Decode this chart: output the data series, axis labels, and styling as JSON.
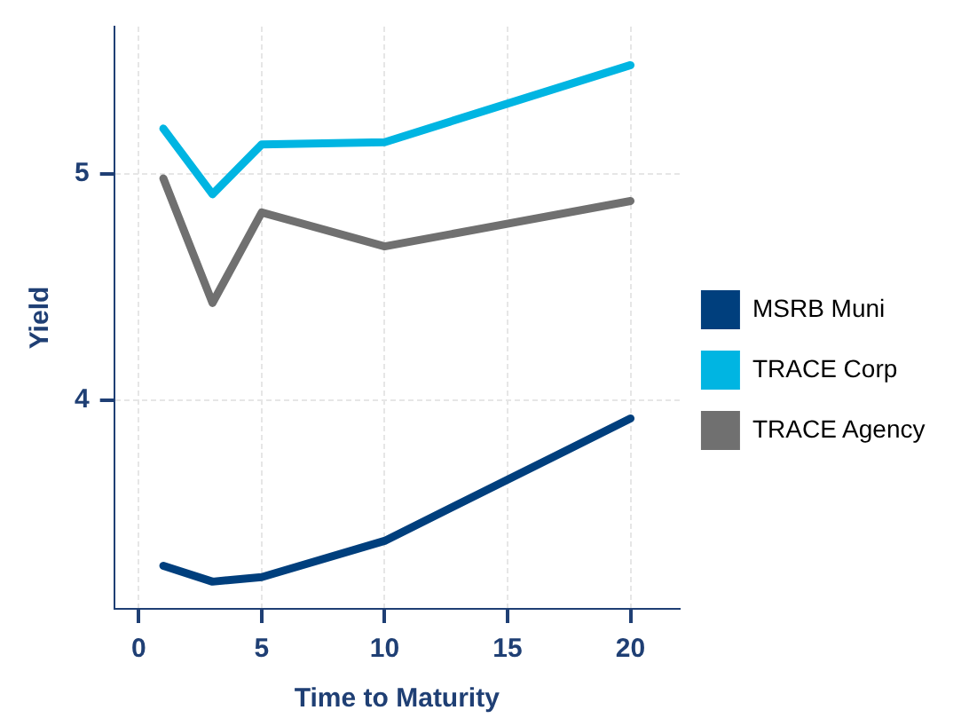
{
  "chart_data": {
    "type": "line",
    "xlabel": "Time to Maturity",
    "ylabel": "Yield",
    "xlim": [
      -1,
      22
    ],
    "ylim": [
      3.08,
      5.65
    ],
    "xticks": [
      0,
      5,
      10,
      15,
      20
    ],
    "yticks": [
      4,
      5
    ],
    "grid": true,
    "legend": "right",
    "marker": "none",
    "line_style": "solid",
    "series": [
      {
        "name": "MSRB Muni",
        "color": "#003f7d",
        "x": [
          1,
          3,
          5,
          10,
          20
        ],
        "values": [
          3.27,
          3.2,
          3.22,
          3.38,
          3.92
        ]
      },
      {
        "name": "TRACE Corp",
        "color": "#00b5e2",
        "x": [
          1,
          3,
          5,
          10,
          20
        ],
        "values": [
          5.2,
          4.91,
          5.13,
          5.14,
          5.48
        ]
      },
      {
        "name": "TRACE Agency",
        "color": "#707070",
        "x": [
          1,
          3,
          5,
          10,
          20
        ],
        "values": [
          4.98,
          4.43,
          4.83,
          4.68,
          4.88
        ]
      }
    ]
  }
}
